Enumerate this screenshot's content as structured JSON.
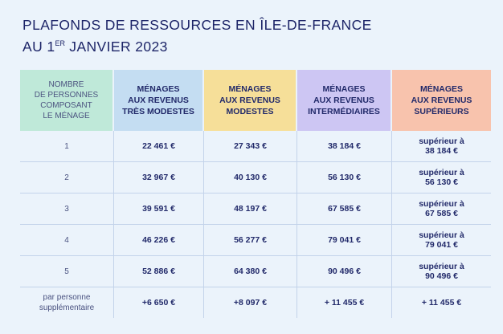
{
  "title": {
    "line1": "PLAFONDS DE RESSOURCES EN ÎLE-DE-FRANCE",
    "line2_prefix": "AU 1",
    "line2_sup": "ER",
    "line2_suffix": " JANVIER 2023"
  },
  "header": {
    "col0": [
      "NOMBRE",
      "DE PERSONNES",
      "COMPOSANT",
      "LE MÉNAGE"
    ],
    "col1": [
      "MÉNAGES",
      "AUX REVENUS",
      "TRÈS MODESTES"
    ],
    "col2": [
      "MÉNAGES",
      "AUX REVENUS",
      "MODESTES"
    ],
    "col3": [
      "MÉNAGES",
      "AUX REVENUS",
      "INTERMÉDIAIRES"
    ],
    "col4": [
      "MÉNAGES",
      "AUX REVENUS",
      "SUPÉRIEURS"
    ]
  },
  "rows": [
    {
      "persons": "1",
      "tres_modestes": "22 461 €",
      "modestes": "27 343 €",
      "intermediaires": "38 184 €",
      "superieurs_label": "supérieur à",
      "superieurs_value": "38 184 €"
    },
    {
      "persons": "2",
      "tres_modestes": "32 967 €",
      "modestes": "40 130 €",
      "intermediaires": "56 130 €",
      "superieurs_label": "supérieur à",
      "superieurs_value": "56 130 €"
    },
    {
      "persons": "3",
      "tres_modestes": "39 591 €",
      "modestes": "48 197 €",
      "intermediaires": "67 585 €",
      "superieurs_label": "supérieur à",
      "superieurs_value": "67 585 €"
    },
    {
      "persons": "4",
      "tres_modestes": "46 226 €",
      "modestes": "56 277 €",
      "intermediaires": "79 041 €",
      "superieurs_label": "supérieur à",
      "superieurs_value": "79 041 €"
    },
    {
      "persons": "5",
      "tres_modestes": "52 886 €",
      "modestes": "64 380 €",
      "intermediaires": "90 496 €",
      "superieurs_label": "supérieur à",
      "superieurs_value": "90 496 €"
    }
  ],
  "extra_row": {
    "persons": [
      "par personne",
      "supplémentaire"
    ],
    "tres_modestes": "+6 650 €",
    "modestes": "+8 097 €",
    "intermediaires": "+ 11 455 €",
    "superieurs": "+ 11 455 €"
  },
  "colors": {
    "background": "#ebf3fb",
    "text": "#232a6b",
    "header_col0": "#bfe9d9",
    "header_tres_modestes": "#c4ddf2",
    "header_modestes": "#f6df99",
    "header_intermediaires": "#cdc6f3",
    "header_superieurs": "#f8c3ad"
  }
}
